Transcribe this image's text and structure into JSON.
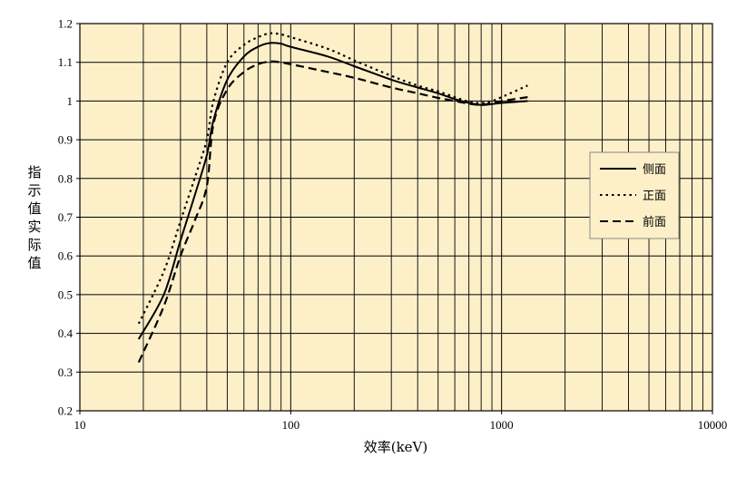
{
  "chart_data": {
    "type": "line",
    "xlabel": "效率(keV)",
    "ylabel": "指示值实际值",
    "x_scale": "log",
    "xlim": [
      10,
      10000
    ],
    "ylim": [
      0.2,
      1.2
    ],
    "x_ticks": [
      "10",
      "100",
      "1000",
      "10000"
    ],
    "y_ticks": [
      "0.2",
      "0.3",
      "0.4",
      "0.5",
      "0.6",
      "0.7",
      "0.8",
      "0.9",
      "1",
      "1.1",
      "1.2"
    ],
    "grid": true,
    "legend_position": "right",
    "background_color": "#fdf0c9",
    "series": [
      {
        "name": "侧面",
        "style": "solid",
        "x": [
          19,
          25,
          30,
          35,
          40,
          43,
          50,
          60,
          70,
          80,
          90,
          100,
          150,
          200,
          300,
          400,
          500,
          600,
          700,
          800,
          900,
          1000,
          1330
        ],
        "y": [
          0.385,
          0.5,
          0.64,
          0.755,
          0.86,
          0.95,
          1.055,
          1.115,
          1.14,
          1.15,
          1.148,
          1.14,
          1.115,
          1.09,
          1.055,
          1.035,
          1.02,
          1.005,
          0.995,
          0.99,
          0.992,
          0.995,
          1.0
        ]
      },
      {
        "name": "正面",
        "style": "dotted",
        "x": [
          19,
          25,
          30,
          35,
          40,
          43,
          50,
          60,
          70,
          80,
          90,
          100,
          150,
          200,
          300,
          400,
          500,
          600,
          700,
          800,
          900,
          1000,
          1330
        ],
        "y": [
          0.425,
          0.56,
          0.69,
          0.8,
          0.9,
          1.0,
          1.1,
          1.145,
          1.165,
          1.175,
          1.172,
          1.165,
          1.135,
          1.105,
          1.065,
          1.04,
          1.025,
          1.01,
          0.998,
          0.995,
          1.0,
          1.01,
          1.04
        ]
      },
      {
        "name": "前面",
        "style": "dashed",
        "x": [
          19,
          25,
          30,
          35,
          40,
          43,
          50,
          60,
          70,
          80,
          90,
          100,
          150,
          200,
          300,
          400,
          500,
          600,
          700,
          800,
          900,
          1000,
          1330
        ],
        "y": [
          0.325,
          0.47,
          0.6,
          0.69,
          0.78,
          0.94,
          1.03,
          1.075,
          1.095,
          1.102,
          1.1,
          1.095,
          1.075,
          1.06,
          1.035,
          1.02,
          1.008,
          1.0,
          0.993,
          0.99,
          0.995,
          1.0,
          1.01
        ]
      }
    ]
  }
}
